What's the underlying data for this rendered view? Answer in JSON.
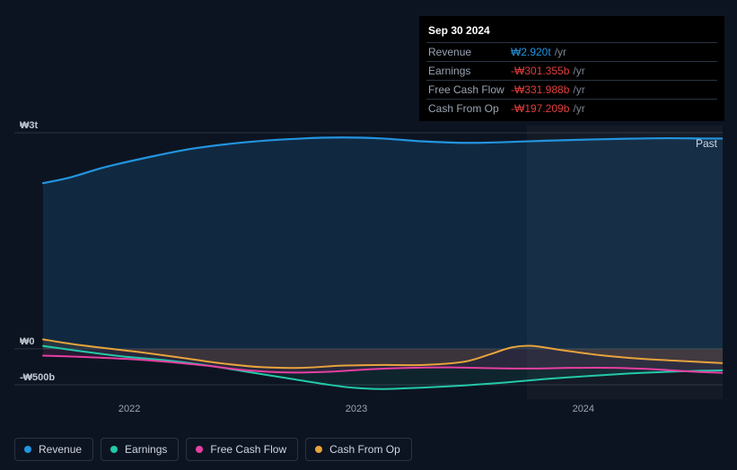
{
  "chart": {
    "type": "area-line",
    "background_color": "#0d1421",
    "grid_color": "#2a3442",
    "text_color": "#9aa4b2",
    "text_color_strong": "#cfd6e1",
    "past_label": "Past",
    "tooltip": {
      "date": "Sep 30 2024",
      "rows": [
        {
          "label": "Revenue",
          "value": "₩2.920t",
          "unit": "/yr",
          "color": "#2394df"
        },
        {
          "label": "Earnings",
          "value": "-₩301.355b",
          "unit": "/yr",
          "color": "#e23d3d"
        },
        {
          "label": "Free Cash Flow",
          "value": "-₩331.988b",
          "unit": "/yr",
          "color": "#e23d3d"
        },
        {
          "label": "Cash From Op",
          "value": "-₩197.209b",
          "unit": "/yr",
          "color": "#e23d3d"
        }
      ]
    },
    "y_axis": {
      "ticks": [
        {
          "label": "₩3t",
          "v": 3000
        },
        {
          "label": "₩0",
          "v": 0
        },
        {
          "label": "-₩500b",
          "v": -500
        }
      ],
      "min": -700,
      "max": 3100
    },
    "x_axis": {
      "ticks": [
        {
          "label": "2022",
          "u": 0.127
        },
        {
          "label": "2023",
          "u": 0.461
        },
        {
          "label": "2024",
          "u": 0.795
        }
      ],
      "min": 0,
      "max": 1
    },
    "hover_x": 0.712,
    "shade_after_hover": true,
    "shade_color": "rgba(255,255,255,0.032)",
    "series": [
      {
        "name": "Revenue",
        "color": "#2394df",
        "fill": "rgba(35,148,223,0.17)",
        "line_width": 2.2,
        "points": [
          [
            0.0,
            2300
          ],
          [
            0.04,
            2380
          ],
          [
            0.09,
            2520
          ],
          [
            0.15,
            2650
          ],
          [
            0.22,
            2780
          ],
          [
            0.3,
            2870
          ],
          [
            0.38,
            2920
          ],
          [
            0.44,
            2935
          ],
          [
            0.5,
            2920
          ],
          [
            0.56,
            2880
          ],
          [
            0.62,
            2860
          ],
          [
            0.68,
            2870
          ],
          [
            0.74,
            2890
          ],
          [
            0.8,
            2905
          ],
          [
            0.86,
            2918
          ],
          [
            0.92,
            2925
          ],
          [
            0.97,
            2920
          ],
          [
            1.0,
            2920
          ]
        ]
      },
      {
        "name": "Earnings",
        "color": "#23c9a8",
        "fill": "rgba(35,201,168,0.10)",
        "line_width": 2,
        "points": [
          [
            0.0,
            40
          ],
          [
            0.06,
            -40
          ],
          [
            0.12,
            -110
          ],
          [
            0.18,
            -160
          ],
          [
            0.24,
            -230
          ],
          [
            0.3,
            -320
          ],
          [
            0.36,
            -410
          ],
          [
            0.42,
            -500
          ],
          [
            0.46,
            -545
          ],
          [
            0.5,
            -560
          ],
          [
            0.56,
            -540
          ],
          [
            0.62,
            -510
          ],
          [
            0.68,
            -470
          ],
          [
            0.74,
            -420
          ],
          [
            0.8,
            -380
          ],
          [
            0.86,
            -345
          ],
          [
            0.92,
            -320
          ],
          [
            0.97,
            -305
          ],
          [
            1.0,
            -300
          ]
        ]
      },
      {
        "name": "Free Cash Flow",
        "color": "#e63fa1",
        "fill": "rgba(230,63,161,0.12)",
        "line_width": 2,
        "points": [
          [
            0.0,
            -95
          ],
          [
            0.06,
            -115
          ],
          [
            0.12,
            -140
          ],
          [
            0.18,
            -180
          ],
          [
            0.24,
            -235
          ],
          [
            0.3,
            -300
          ],
          [
            0.36,
            -330
          ],
          [
            0.42,
            -320
          ],
          [
            0.48,
            -285
          ],
          [
            0.54,
            -265
          ],
          [
            0.6,
            -260
          ],
          [
            0.66,
            -270
          ],
          [
            0.72,
            -275
          ],
          [
            0.78,
            -265
          ],
          [
            0.84,
            -265
          ],
          [
            0.9,
            -285
          ],
          [
            0.95,
            -315
          ],
          [
            1.0,
            -335
          ]
        ]
      },
      {
        "name": "Cash From Op",
        "color": "#e8a33c",
        "fill": "rgba(232,163,60,0.10)",
        "line_width": 2,
        "points": [
          [
            0.0,
            130
          ],
          [
            0.04,
            70
          ],
          [
            0.09,
            10
          ],
          [
            0.14,
            -45
          ],
          [
            0.2,
            -120
          ],
          [
            0.26,
            -200
          ],
          [
            0.32,
            -255
          ],
          [
            0.38,
            -265
          ],
          [
            0.44,
            -235
          ],
          [
            0.5,
            -225
          ],
          [
            0.56,
            -225
          ],
          [
            0.62,
            -180
          ],
          [
            0.66,
            -70
          ],
          [
            0.69,
            20
          ],
          [
            0.72,
            40
          ],
          [
            0.76,
            -15
          ],
          [
            0.82,
            -90
          ],
          [
            0.88,
            -140
          ],
          [
            0.94,
            -170
          ],
          [
            1.0,
            -200
          ]
        ]
      }
    ],
    "legend": [
      {
        "label": "Revenue",
        "color": "#2394df"
      },
      {
        "label": "Earnings",
        "color": "#23c9a8"
      },
      {
        "label": "Free Cash Flow",
        "color": "#e63fa1"
      },
      {
        "label": "Cash From Op",
        "color": "#e8a33c"
      }
    ]
  }
}
